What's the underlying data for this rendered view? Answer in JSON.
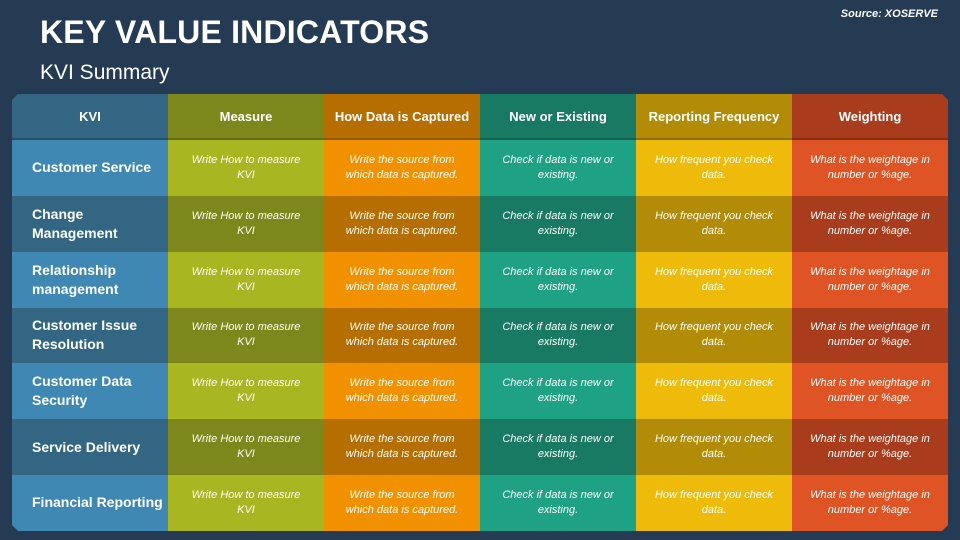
{
  "slide": {
    "title": "KEY VALUE INDICATORS",
    "subtitle": "KVI Summary",
    "source": "Source: XOSERVE"
  },
  "colors": {
    "background": "#253a53",
    "columns": [
      {
        "light": "#4088b4",
        "dark": "#326683",
        "header": "#326683"
      },
      {
        "light": "#a7b621",
        "dark": "#7d881c",
        "header": "#7d881c"
      },
      {
        "light": "#f29100",
        "dark": "#b76e00",
        "header": "#b76e00"
      },
      {
        "light": "#1fa283",
        "dark": "#187a62",
        "header": "#187a62"
      },
      {
        "light": "#efbb0b",
        "dark": "#b28b07",
        "header": "#b28b07"
      },
      {
        "light": "#de5425",
        "dark": "#a93c1c",
        "header": "#a93c1c"
      }
    ]
  },
  "table": {
    "headers": [
      "KVI",
      "Measure",
      "How Data is Captured",
      "New or Existing",
      "Reporting Frequency",
      "Weighting"
    ],
    "rows": [
      {
        "kvi": "Customer Service",
        "measure": "Write How to measure KVI",
        "captured": "Write the source from which data is captured.",
        "new_existing": "Check if data is new or existing.",
        "frequency": "How frequent you check data.",
        "weighting": "What is the weightage in number or %age."
      },
      {
        "kvi": "Change Management",
        "measure": "Write How to measure KVI",
        "captured": "Write the source from which data is captured.",
        "new_existing": "Check if data is new or existing.",
        "frequency": "How frequent you check data.",
        "weighting": "What is the weightage in number or %age."
      },
      {
        "kvi": "Relationship management",
        "measure": "Write How to measure KVI",
        "captured": "Write the source from which data is captured.",
        "new_existing": "Check if data is new or existing.",
        "frequency": "How frequent you check data.",
        "weighting": "What is the weightage in number or %age."
      },
      {
        "kvi": "Customer Issue Resolution",
        "measure": "Write How to measure KVI",
        "captured": "Write the source from which data is captured.",
        "new_existing": "Check if data is new or existing.",
        "frequency": "How frequent you check data.",
        "weighting": "What is the weightage in number or %age."
      },
      {
        "kvi": "Customer Data Security",
        "measure": "Write How to measure KVI",
        "captured": "Write the source from which data is captured.",
        "new_existing": "Check if data is new or existing.",
        "frequency": "How frequent you check data.",
        "weighting": "What is the weightage in number or %age."
      },
      {
        "kvi": "Service Delivery",
        "measure": "Write How to measure KVI",
        "captured": "Write the source from which data is captured.",
        "new_existing": "Check if data is new or existing.",
        "frequency": "How frequent you check data.",
        "weighting": "What is the weightage in number or %age."
      },
      {
        "kvi": "Financial Reporting",
        "measure": "Write How to measure KVI",
        "captured": "Write the source from which data is captured.",
        "new_existing": "Check if data is new or existing.",
        "frequency": "How frequent you check data.",
        "weighting": "What is the weightage in number or %age."
      }
    ]
  }
}
